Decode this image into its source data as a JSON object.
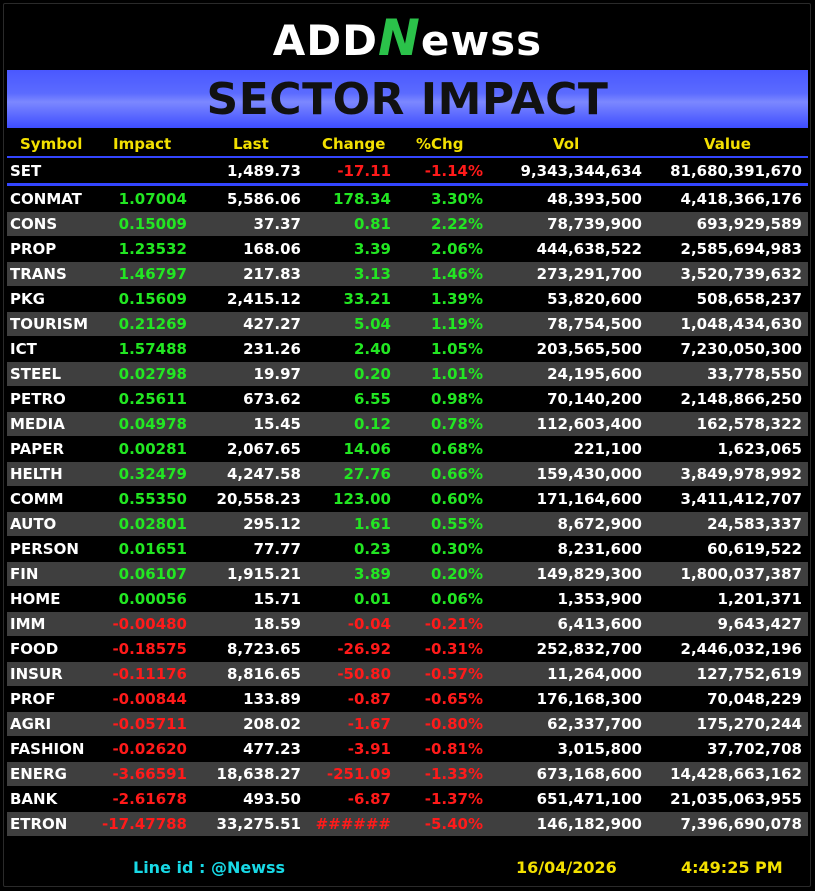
{
  "logo": {
    "part1": "ADD",
    "part2": "N",
    "part3": "ewss"
  },
  "banner": {
    "title": "SECTOR IMPACT"
  },
  "columns": [
    "Symbol",
    "Impact",
    "Last",
    "Change",
    "%Chg",
    "Vol",
    "Value"
  ],
  "index_row": {
    "symbol": "SET",
    "impact": "",
    "last": "1,489.73",
    "change": "-17.11",
    "pct": "-1.14%",
    "vol": "9,343,344,634",
    "value": "81,680,391,670"
  },
  "rows": [
    {
      "symbol": "CONMAT",
      "impact": "1.07004",
      "last": "5,586.06",
      "change": "178.34",
      "pct": "3.30%",
      "vol": "48,393,500",
      "value": "4,418,366,176",
      "dir": "pos"
    },
    {
      "symbol": "CONS",
      "impact": "0.15009",
      "last": "37.37",
      "change": "0.81",
      "pct": "2.22%",
      "vol": "78,739,900",
      "value": "693,929,589",
      "dir": "pos"
    },
    {
      "symbol": "PROP",
      "impact": "1.23532",
      "last": "168.06",
      "change": "3.39",
      "pct": "2.06%",
      "vol": "444,638,522",
      "value": "2,585,694,983",
      "dir": "pos"
    },
    {
      "symbol": "TRANS",
      "impact": "1.46797",
      "last": "217.83",
      "change": "3.13",
      "pct": "1.46%",
      "vol": "273,291,700",
      "value": "3,520,739,632",
      "dir": "pos"
    },
    {
      "symbol": "PKG",
      "impact": "0.15609",
      "last": "2,415.12",
      "change": "33.21",
      "pct": "1.39%",
      "vol": "53,820,600",
      "value": "508,658,237",
      "dir": "pos"
    },
    {
      "symbol": "TOURISM",
      "impact": "0.21269",
      "last": "427.27",
      "change": "5.04",
      "pct": "1.19%",
      "vol": "78,754,500",
      "value": "1,048,434,630",
      "dir": "pos"
    },
    {
      "symbol": "ICT",
      "impact": "1.57488",
      "last": "231.26",
      "change": "2.40",
      "pct": "1.05%",
      "vol": "203,565,500",
      "value": "7,230,050,300",
      "dir": "pos"
    },
    {
      "symbol": "STEEL",
      "impact": "0.02798",
      "last": "19.97",
      "change": "0.20",
      "pct": "1.01%",
      "vol": "24,195,600",
      "value": "33,778,550",
      "dir": "pos"
    },
    {
      "symbol": "PETRO",
      "impact": "0.25611",
      "last": "673.62",
      "change": "6.55",
      "pct": "0.98%",
      "vol": "70,140,200",
      "value": "2,148,866,250",
      "dir": "pos"
    },
    {
      "symbol": "MEDIA",
      "impact": "0.04978",
      "last": "15.45",
      "change": "0.12",
      "pct": "0.78%",
      "vol": "112,603,400",
      "value": "162,578,322",
      "dir": "pos"
    },
    {
      "symbol": "PAPER",
      "impact": "0.00281",
      "last": "2,067.65",
      "change": "14.06",
      "pct": "0.68%",
      "vol": "221,100",
      "value": "1,623,065",
      "dir": "pos"
    },
    {
      "symbol": "HELTH",
      "impact": "0.32479",
      "last": "4,247.58",
      "change": "27.76",
      "pct": "0.66%",
      "vol": "159,430,000",
      "value": "3,849,978,992",
      "dir": "pos"
    },
    {
      "symbol": "COMM",
      "impact": "0.55350",
      "last": "20,558.23",
      "change": "123.00",
      "pct": "0.60%",
      "vol": "171,164,600",
      "value": "3,411,412,707",
      "dir": "pos"
    },
    {
      "symbol": "AUTO",
      "impact": "0.02801",
      "last": "295.12",
      "change": "1.61",
      "pct": "0.55%",
      "vol": "8,672,900",
      "value": "24,583,337",
      "dir": "pos"
    },
    {
      "symbol": "PERSON",
      "impact": "0.01651",
      "last": "77.77",
      "change": "0.23",
      "pct": "0.30%",
      "vol": "8,231,600",
      "value": "60,619,522",
      "dir": "pos"
    },
    {
      "symbol": "FIN",
      "impact": "0.06107",
      "last": "1,915.21",
      "change": "3.89",
      "pct": "0.20%",
      "vol": "149,829,300",
      "value": "1,800,037,387",
      "dir": "pos"
    },
    {
      "symbol": "HOME",
      "impact": "0.00056",
      "last": "15.71",
      "change": "0.01",
      "pct": "0.06%",
      "vol": "1,353,900",
      "value": "1,201,371",
      "dir": "pos"
    },
    {
      "symbol": "IMM",
      "impact": "-0.00480",
      "last": "18.59",
      "change": "-0.04",
      "pct": "-0.21%",
      "vol": "6,413,600",
      "value": "9,643,427",
      "dir": "neg"
    },
    {
      "symbol": "FOOD",
      "impact": "-0.18575",
      "last": "8,723.65",
      "change": "-26.92",
      "pct": "-0.31%",
      "vol": "252,832,700",
      "value": "2,446,032,196",
      "dir": "neg"
    },
    {
      "symbol": "INSUR",
      "impact": "-0.11176",
      "last": "8,816.65",
      "change": "-50.80",
      "pct": "-0.57%",
      "vol": "11,264,000",
      "value": "127,752,619",
      "dir": "neg"
    },
    {
      "symbol": "PROF",
      "impact": "-0.00844",
      "last": "133.89",
      "change": "-0.87",
      "pct": "-0.65%",
      "vol": "176,168,300",
      "value": "70,048,229",
      "dir": "neg"
    },
    {
      "symbol": "AGRI",
      "impact": "-0.05711",
      "last": "208.02",
      "change": "-1.67",
      "pct": "-0.80%",
      "vol": "62,337,700",
      "value": "175,270,244",
      "dir": "neg"
    },
    {
      "symbol": "FASHION",
      "impact": "-0.02620",
      "last": "477.23",
      "change": "-3.91",
      "pct": "-0.81%",
      "vol": "3,015,800",
      "value": "37,702,708",
      "dir": "neg"
    },
    {
      "symbol": "ENERG",
      "impact": "-3.66591",
      "last": "18,638.27",
      "change": "-251.09",
      "pct": "-1.33%",
      "vol": "673,168,600",
      "value": "14,428,663,162",
      "dir": "neg"
    },
    {
      "symbol": "BANK",
      "impact": "-2.61678",
      "last": "493.50",
      "change": "-6.87",
      "pct": "-1.37%",
      "vol": "651,471,100",
      "value": "21,035,063,955",
      "dir": "neg"
    },
    {
      "symbol": "ETRON",
      "impact": "-17.47788",
      "last": "33,275.51",
      "change": "######",
      "pct": "-5.40%",
      "vol": "146,182,900",
      "value": "7,396,690,078",
      "dir": "neg"
    }
  ],
  "footer": {
    "line_id": "Line id  : @Newss",
    "date": "16/04/2026",
    "time": "4:49:25 PM"
  },
  "colors": {
    "positive": "#22e622",
    "negative": "#ff1a1a",
    "header": "#f3e000",
    "accent": "#3346ff",
    "footer_link": "#18d9e6"
  }
}
